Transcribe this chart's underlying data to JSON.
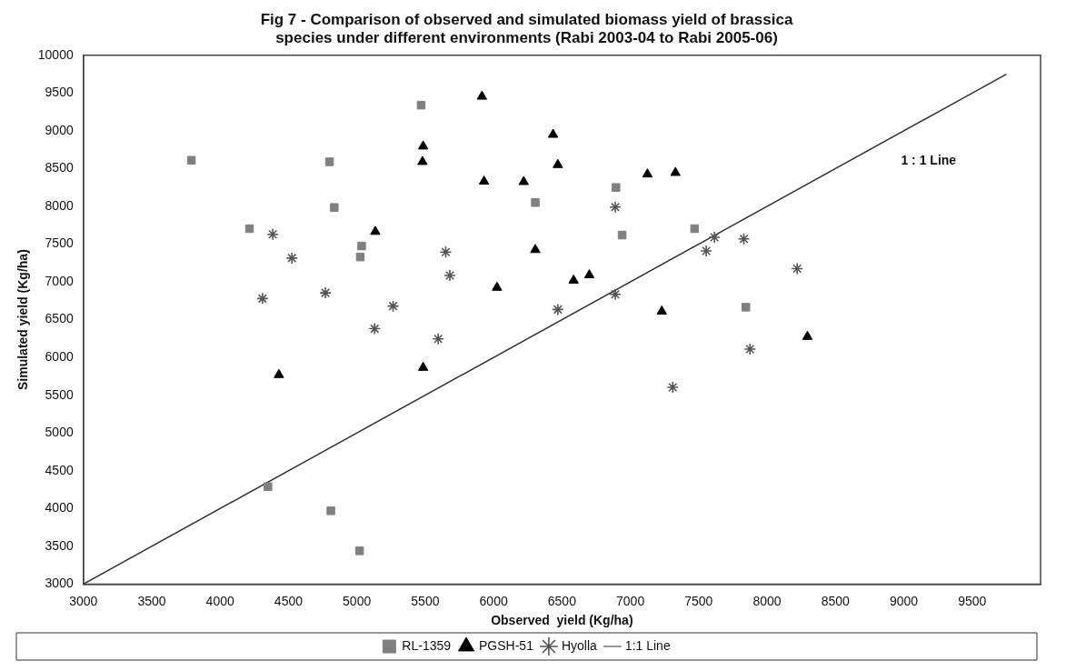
{
  "chart_data": {
    "type": "scatter",
    "title": [
      "Fig 7 - Comparison of observed and simulated biomass yield of brassica",
      "species under different environments (Rabi 2003-04 to Rabi 2005-06)"
    ],
    "xlabel": "Observed  yield (Kg/ha)",
    "ylabel": "Simulated yield (Kg/ha)",
    "xlim": [
      3000,
      10000
    ],
    "xticks": [
      3000,
      3500,
      4000,
      4500,
      5000,
      5500,
      6000,
      6500,
      7000,
      7500,
      8000,
      8500,
      9000,
      9500
    ],
    "ylim": [
      3000,
      10000
    ],
    "yticks": [
      3000,
      3500,
      4000,
      4500,
      5000,
      5500,
      6000,
      6500,
      7000,
      7500,
      8000,
      8500,
      9000,
      9500,
      10000
    ],
    "grid": false,
    "legend": "bottom",
    "annotations": [
      "1 : 1 Line"
    ],
    "series": [
      {
        "name": "RL-1359",
        "marker": "square",
        "color": "#808080",
        "x": [
          3790,
          4800,
          5470,
          4835,
          4215,
          5035,
          5025,
          6305,
          6895,
          6940,
          7470,
          7845,
          4350,
          4810,
          5020
        ],
        "values": [
          8610,
          8590,
          9340,
          7985,
          7705,
          7475,
          7330,
          8050,
          8250,
          7620,
          7705,
          6665,
          4290,
          3970,
          3440
        ]
      },
      {
        "name": "PGSH-51",
        "marker": "triangle",
        "color": "#000000",
        "x": [
          5915,
          6435,
          5485,
          5480,
          6470,
          5930,
          6220,
          5135,
          6305,
          6585,
          6025,
          7125,
          7330,
          6700,
          7230,
          8295,
          4430,
          5485
        ],
        "values": [
          9455,
          8950,
          8795,
          8590,
          8550,
          8330,
          8325,
          7665,
          7425,
          7020,
          6925,
          8425,
          8445,
          7090,
          6610,
          6275,
          5770,
          5865
        ]
      },
      {
        "name": "Hyolla",
        "marker": "cross",
        "color": "#555555",
        "x": [
          4385,
          4525,
          4310,
          4770,
          5650,
          5680,
          5265,
          5130,
          6470,
          5595,
          6890,
          7615,
          7555,
          7830,
          8220,
          6890,
          7875,
          7310
        ],
        "values": [
          7630,
          7315,
          6780,
          6855,
          7395,
          7085,
          6680,
          6380,
          6635,
          6245,
          7990,
          7590,
          7410,
          7570,
          7175,
          6835,
          6110,
          5605
        ]
      },
      {
        "name": "1:1 Line",
        "type": "line",
        "marker": "none",
        "line_style": "solid",
        "color": "#333333",
        "x": [
          3000,
          9750
        ],
        "values": [
          3000,
          9750
        ]
      }
    ]
  }
}
